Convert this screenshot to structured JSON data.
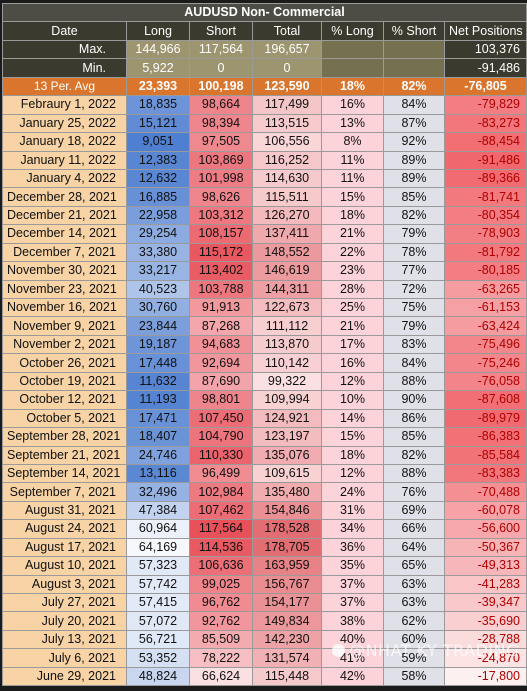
{
  "title": "AUDUSD Non- Commercial",
  "headers": [
    "Date",
    "Long",
    "Short",
    "Total",
    "% Long",
    "% Short",
    "Net Positions"
  ],
  "max": {
    "label": "Max.",
    "long": "144,966",
    "short": "117,564",
    "total": "196,657",
    "net": "103,376"
  },
  "min": {
    "label": "Min.",
    "long": "5,922",
    "short": "0",
    "total": "0",
    "net": "-91,486"
  },
  "avg": {
    "label": "13 Per. Avg",
    "long": "23,393",
    "short": "100,198",
    "total": "123,590",
    "pct_long": "18%",
    "pct_short": "82%",
    "net": "-76,805"
  },
  "rows": [
    {
      "date": "Febraury 1, 2022",
      "long": "18,835",
      "short": "98,664",
      "total": "117,499",
      "pl": "16%",
      "ps": "84%",
      "net": "-79,829"
    },
    {
      "date": "January 25, 2022",
      "long": "15,121",
      "short": "98,394",
      "total": "113,515",
      "pl": "13%",
      "ps": "87%",
      "net": "-83,273"
    },
    {
      "date": "January 18, 2022",
      "long": "9,051",
      "short": "97,505",
      "total": "106,556",
      "pl": "8%",
      "ps": "92%",
      "net": "-88,454"
    },
    {
      "date": "January 11, 2022",
      "long": "12,383",
      "short": "103,869",
      "total": "116,252",
      "pl": "11%",
      "ps": "89%",
      "net": "-91,486"
    },
    {
      "date": "January 4, 2022",
      "long": "12,632",
      "short": "101,998",
      "total": "114,630",
      "pl": "11%",
      "ps": "89%",
      "net": "-89,366"
    },
    {
      "date": "December 28, 2021",
      "long": "16,885",
      "short": "98,626",
      "total": "115,511",
      "pl": "15%",
      "ps": "85%",
      "net": "-81,741"
    },
    {
      "date": "December 21, 2021",
      "long": "22,958",
      "short": "103,312",
      "total": "126,270",
      "pl": "18%",
      "ps": "82%",
      "net": "-80,354"
    },
    {
      "date": "December 14, 2021",
      "long": "29,254",
      "short": "108,157",
      "total": "137,411",
      "pl": "21%",
      "ps": "79%",
      "net": "-78,903"
    },
    {
      "date": "December 7, 2021",
      "long": "33,380",
      "short": "115,172",
      "total": "148,552",
      "pl": "22%",
      "ps": "78%",
      "net": "-81,792"
    },
    {
      "date": "November 30, 2021",
      "long": "33,217",
      "short": "113,402",
      "total": "146,619",
      "pl": "23%",
      "ps": "77%",
      "net": "-80,185"
    },
    {
      "date": "November 23, 2021",
      "long": "40,523",
      "short": "103,788",
      "total": "144,311",
      "pl": "28%",
      "ps": "72%",
      "net": "-63,265"
    },
    {
      "date": "November 16, 2021",
      "long": "30,760",
      "short": "91,913",
      "total": "122,673",
      "pl": "25%",
      "ps": "75%",
      "net": "-61,153"
    },
    {
      "date": "November 9, 2021",
      "long": "23,844",
      "short": "87,268",
      "total": "111,112",
      "pl": "21%",
      "ps": "79%",
      "net": "-63,424"
    },
    {
      "date": "November 2, 2021",
      "long": "19,187",
      "short": "94,683",
      "total": "113,870",
      "pl": "17%",
      "ps": "83%",
      "net": "-75,496"
    },
    {
      "date": "October 26, 2021",
      "long": "17,448",
      "short": "92,694",
      "total": "110,142",
      "pl": "16%",
      "ps": "84%",
      "net": "-75,246"
    },
    {
      "date": "October 19, 2021",
      "long": "11,632",
      "short": "87,690",
      "total": "99,322",
      "pl": "12%",
      "ps": "88%",
      "net": "-76,058"
    },
    {
      "date": "October 12, 2021",
      "long": "11,193",
      "short": "98,801",
      "total": "109,994",
      "pl": "10%",
      "ps": "90%",
      "net": "-87,608"
    },
    {
      "date": "October 5, 2021",
      "long": "17,471",
      "short": "107,450",
      "total": "124,921",
      "pl": "14%",
      "ps": "86%",
      "net": "-89,979"
    },
    {
      "date": "September 28, 2021",
      "long": "18,407",
      "short": "104,790",
      "total": "123,197",
      "pl": "15%",
      "ps": "85%",
      "net": "-86,383"
    },
    {
      "date": "September 21, 2021",
      "long": "24,746",
      "short": "110,330",
      "total": "135,076",
      "pl": "18%",
      "ps": "82%",
      "net": "-85,584"
    },
    {
      "date": "September 14, 2021",
      "long": "13,116",
      "short": "96,499",
      "total": "109,615",
      "pl": "12%",
      "ps": "88%",
      "net": "-83,383"
    },
    {
      "date": "September 7, 2021",
      "long": "32,496",
      "short": "102,984",
      "total": "135,480",
      "pl": "24%",
      "ps": "76%",
      "net": "-70,488"
    },
    {
      "date": "August 31, 2021",
      "long": "47,384",
      "short": "107,462",
      "total": "154,846",
      "pl": "31%",
      "ps": "69%",
      "net": "-60,078"
    },
    {
      "date": "August 24, 2021",
      "long": "60,964",
      "short": "117,564",
      "total": "178,528",
      "pl": "34%",
      "ps": "66%",
      "net": "-56,600"
    },
    {
      "date": "August 17, 2021",
      "long": "64,169",
      "short": "114,536",
      "total": "178,705",
      "pl": "36%",
      "ps": "64%",
      "net": "-50,367"
    },
    {
      "date": "August 10, 2021",
      "long": "57,323",
      "short": "106,636",
      "total": "163,959",
      "pl": "35%",
      "ps": "65%",
      "net": "-49,313"
    },
    {
      "date": "August 3, 2021",
      "long": "57,742",
      "short": "99,025",
      "total": "156,767",
      "pl": "37%",
      "ps": "63%",
      "net": "-41,283"
    },
    {
      "date": "July 27, 2021",
      "long": "57,415",
      "short": "96,762",
      "total": "154,177",
      "pl": "37%",
      "ps": "63%",
      "net": "-39,347"
    },
    {
      "date": "July 20, 2021",
      "long": "57,072",
      "short": "92,762",
      "total": "149,834",
      "pl": "38%",
      "ps": "62%",
      "net": "-35,690"
    },
    {
      "date": "July 13, 2021",
      "long": "56,721",
      "short": "85,509",
      "total": "142,230",
      "pl": "40%",
      "ps": "60%",
      "net": "-28,788"
    },
    {
      "date": "July 6, 2021",
      "long": "53,352",
      "short": "78,222",
      "total": "131,574",
      "pl": "41%",
      "ps": "59%",
      "net": "-24,870"
    },
    {
      "date": "June 29, 2021",
      "long": "48,824",
      "short": "66,624",
      "total": "115,448",
      "pl": "42%",
      "ps": "58%",
      "net": "-17,800"
    }
  ],
  "watermark": "@NHAT KY TRADING",
  "colors": {
    "long_high": "#4f7fd0",
    "long_low": "#f6f8fc",
    "short_high": "#e8505a",
    "short_low": "#fbe0e2",
    "net_high": "#f0686e",
    "net_low": "#fdf0f1",
    "pct_long_bg": "#fbd3d8",
    "pct_short_bg": "#e0e0e8"
  }
}
